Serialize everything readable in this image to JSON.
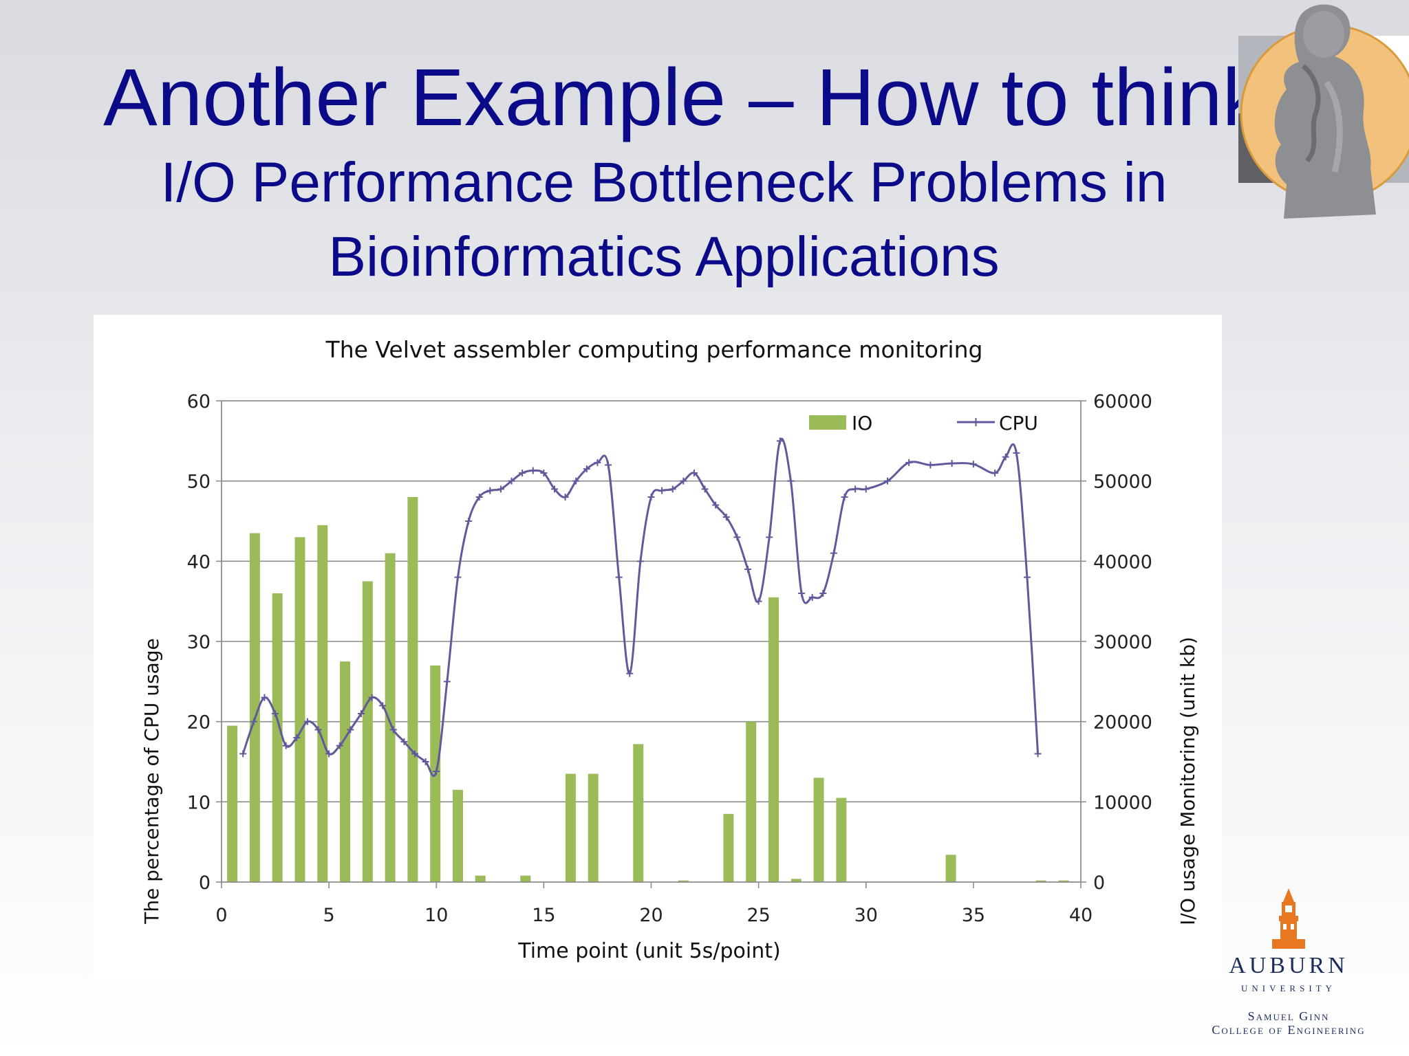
{
  "slide": {
    "title": "Another Example – How to think",
    "subtitle_line1": "I/O Performance Bottleneck Problems in",
    "subtitle_line2": "Bioinformatics Applications"
  },
  "logos": {
    "thinker_icon": "thinker-statue-icon",
    "university_name": "AUBURN",
    "university_word": "UNIVERSITY",
    "college_line1": "Samuel Ginn",
    "college_line2": "College of Engineering",
    "colors": {
      "navy": "#1b2d5e",
      "orange": "#e87722"
    }
  },
  "chart_data": {
    "type": "bar+line",
    "title": "The Velvet assembler computing performance monitoring",
    "xlabel": "Time point (unit 5s/point)",
    "ylabel_left": "The percentage of CPU usage",
    "ylabel_right": "I/O usage Monitoring (unit kb)",
    "xlim": [
      0,
      40
    ],
    "ylim_left": [
      0,
      60
    ],
    "ylim_right": [
      0,
      60000
    ],
    "x_ticks": [
      0,
      5,
      10,
      15,
      20,
      25,
      30,
      35,
      40
    ],
    "y_ticks_left": [
      0,
      10,
      20,
      30,
      40,
      50,
      60
    ],
    "y_ticks_right": [
      0,
      10000,
      20000,
      30000,
      40000,
      50000,
      60000
    ],
    "grid": true,
    "legend_position": "top-right",
    "series": [
      {
        "name": "IO",
        "type": "bar",
        "axis": "right",
        "color": "#9bbb59",
        "x": [
          0.5,
          1.55,
          2.6,
          3.65,
          4.7,
          5.75,
          6.8,
          7.85,
          8.9,
          9.95,
          11.0,
          12.05,
          14.15,
          16.25,
          17.3,
          19.4,
          21.5,
          23.6,
          24.65,
          25.7,
          26.75,
          27.8,
          28.85,
          33.95,
          38.15,
          39.2
        ],
        "values": [
          19500,
          43500,
          36000,
          43000,
          44500,
          27500,
          37500,
          41000,
          48000,
          27000,
          11500,
          800,
          800,
          13500,
          13500,
          17200,
          200,
          8500,
          20000,
          35500,
          400,
          13000,
          10500,
          3400,
          200,
          200
        ]
      },
      {
        "name": "CPU",
        "type": "line",
        "axis": "left",
        "color": "#5e5a9b",
        "x": [
          1,
          1.5,
          2,
          2.5,
          3,
          3.5,
          4,
          4.5,
          5,
          5.5,
          6,
          6.5,
          7,
          7.5,
          8,
          8.5,
          9,
          9.5,
          10,
          10.5,
          11,
          11.5,
          12,
          12.5,
          13,
          13.5,
          14,
          14.5,
          15,
          15.5,
          16,
          16.5,
          17,
          17.5,
          18,
          18.5,
          19,
          19.5,
          20,
          20.5,
          21,
          21.5,
          22,
          22.5,
          23,
          23.5,
          24,
          24.5,
          25,
          25.5,
          26,
          26.5,
          27,
          27.5,
          28,
          28.5,
          29,
          29.5,
          30,
          31,
          32,
          33,
          34,
          35,
          36,
          36.5,
          37,
          37.5,
          38
        ],
        "values": [
          16,
          20,
          23,
          21,
          17,
          18,
          20,
          19,
          16,
          17,
          19,
          21,
          23,
          22,
          19,
          17.5,
          16,
          15,
          13.8,
          25,
          38,
          45,
          48,
          48.8,
          49,
          50,
          51,
          51.3,
          51,
          49,
          48,
          50,
          51.5,
          52.3,
          52,
          38,
          26,
          40,
          48,
          48.8,
          49,
          50,
          51,
          49,
          47,
          45.5,
          43,
          39,
          35,
          43,
          55,
          50,
          36,
          35.5,
          36,
          41,
          48,
          49,
          49,
          50,
          52.3,
          52,
          52.2,
          52.1,
          51,
          53,
          53.5,
          38,
          16
        ]
      }
    ]
  }
}
